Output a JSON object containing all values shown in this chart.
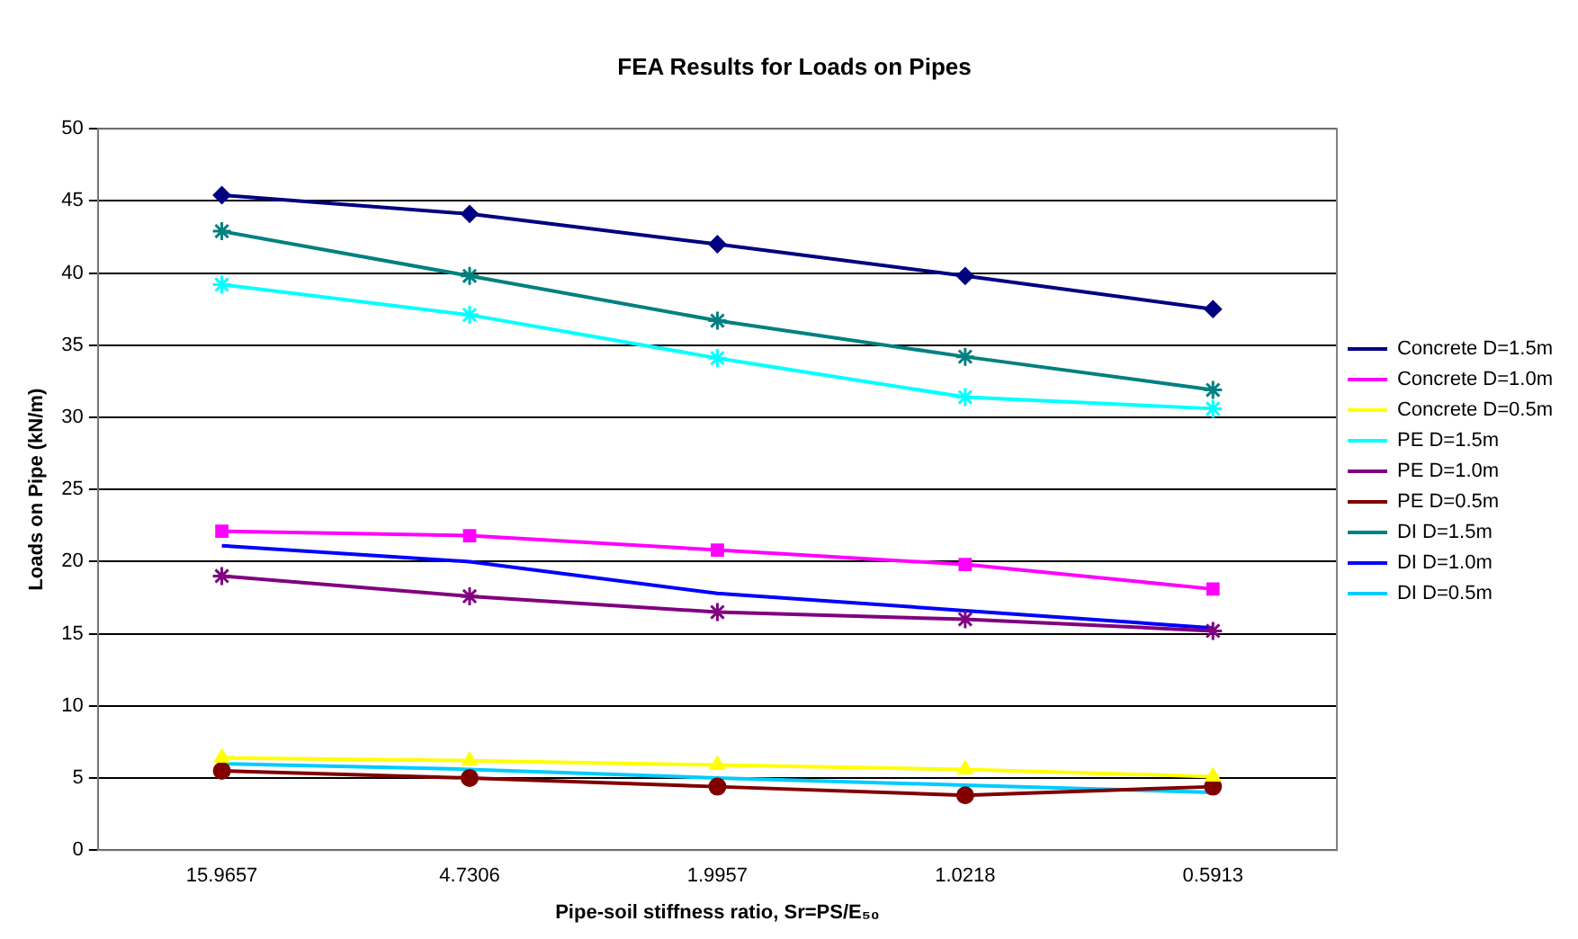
{
  "chart_data": {
    "type": "line",
    "title": "FEA Results for Loads on Pipes",
    "xlabel": "Pipe-soil stiffness ratio, Sr=PS/E₅₀",
    "ylabel": "Loads on Pipe (kN/m)",
    "categories": [
      "15.9657",
      "4.7306",
      "1.9957",
      "1.0218",
      "0.5913"
    ],
    "ylim": [
      0,
      50
    ],
    "yticks": [
      0,
      5,
      10,
      15,
      20,
      25,
      30,
      35,
      40,
      45,
      50
    ],
    "grid": "y",
    "legend": "right",
    "line_style": "solid",
    "series": [
      {
        "name": "Concrete D=1.5m",
        "color": "#000080",
        "marker": "diamond",
        "values": [
          45.4,
          44.1,
          42.0,
          39.8,
          37.5
        ]
      },
      {
        "name": "Concrete D=1.0m",
        "color": "#ff00ff",
        "marker": "square",
        "values": [
          22.1,
          21.8,
          20.8,
          19.8,
          18.1
        ]
      },
      {
        "name": "Concrete D=0.5m",
        "color": "#ffff00",
        "marker": "triangle",
        "values": [
          6.4,
          6.2,
          5.9,
          5.6,
          5.1
        ]
      },
      {
        "name": "PE D=1.5m",
        "color": "#00ffff",
        "marker": "cross",
        "values": [
          39.2,
          37.1,
          34.1,
          31.4,
          30.6
        ]
      },
      {
        "name": "PE D=1.0m",
        "color": "#800080",
        "marker": "cross",
        "values": [
          19.0,
          17.6,
          16.5,
          16.0,
          15.2
        ]
      },
      {
        "name": "PE D=0.5m",
        "color": "#800000",
        "marker": "circle",
        "values": [
          5.5,
          5.0,
          4.4,
          3.8,
          4.4
        ]
      },
      {
        "name": "DI D=1.5m",
        "color": "#008080",
        "marker": "cross",
        "values": [
          42.9,
          39.8,
          36.7,
          34.2,
          31.9
        ]
      },
      {
        "name": "DI D=1.0m",
        "color": "#0000ff",
        "marker": "none",
        "values": [
          21.1,
          20.0,
          17.8,
          16.6,
          15.4
        ]
      },
      {
        "name": "DI D=0.5m",
        "color": "#00ccff",
        "marker": "none",
        "values": [
          6.0,
          5.6,
          5.0,
          4.5,
          4.0
        ]
      }
    ]
  }
}
